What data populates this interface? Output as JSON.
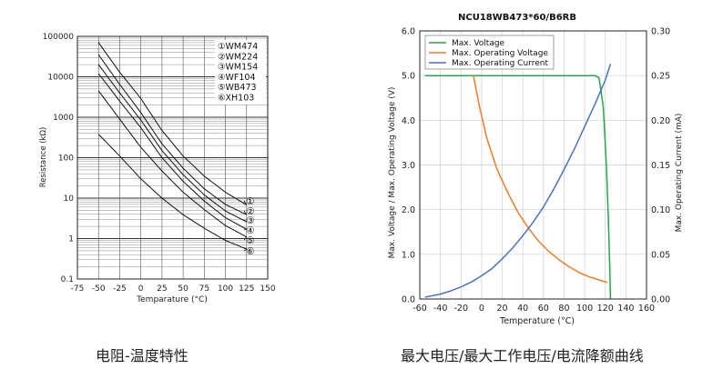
{
  "chart_data": [
    {
      "type": "line",
      "title": "",
      "xlabel": "Temparature (°C)",
      "ylabel": "Resistance (kΩ)",
      "xlim": [
        -75,
        150
      ],
      "ylim": [
        0.1,
        100000
      ],
      "yscale": "log",
      "x_ticks": [
        "-75",
        "-50",
        "-25",
        "0",
        "25",
        "50",
        "75",
        "100",
        "125",
        "150"
      ],
      "y_ticks": [
        "100000",
        "10000",
        "1000",
        "100",
        "10",
        "1",
        "0.1"
      ],
      "grid": true,
      "legend": "top-right",
      "legend_entries": [
        "①WM474",
        "②WM224",
        "③WM154",
        "④WF104",
        "⑤WB473",
        "⑥XH103"
      ],
      "series": [
        {
          "name": "①WM474",
          "marker": "①",
          "x": [
            -50,
            -25,
            0,
            25,
            50,
            75,
            100,
            125
          ],
          "y": [
            70000,
            13000,
            2900,
            470,
            110,
            35,
            14,
            6.8
          ]
        },
        {
          "name": "②WM224",
          "marker": "②",
          "x": [
            -50,
            -25,
            0,
            25,
            50,
            75,
            100,
            125
          ],
          "y": [
            35000,
            6500,
            1300,
            220,
            55,
            17,
            7,
            3.9
          ]
        },
        {
          "name": "③WM154",
          "marker": "③",
          "x": [
            -50,
            -25,
            0,
            25,
            50,
            75,
            100,
            125
          ],
          "y": [
            20000,
            4000,
            850,
            150,
            38,
            12,
            4.8,
            2.6
          ]
        },
        {
          "name": "④WF104",
          "marker": "④",
          "x": [
            -50,
            -25,
            0,
            25,
            50,
            75,
            100,
            125
          ],
          "y": [
            12000,
            2500,
            550,
            100,
            26,
            8.5,
            3.3,
            1.7
          ]
        },
        {
          "name": "⑤WB473",
          "marker": "⑤",
          "x": [
            -50,
            -25,
            0,
            25,
            50,
            75,
            100,
            125
          ],
          "y": [
            4500,
            900,
            180,
            47,
            14,
            5.2,
            2.1,
            1.1
          ]
        },
        {
          "name": "⑥XH103",
          "marker": "⑥",
          "x": [
            -50,
            -25,
            0,
            25,
            50,
            75,
            100,
            125
          ],
          "y": [
            380,
            110,
            30,
            10,
            3.9,
            1.8,
            0.9,
            0.55
          ]
        }
      ]
    },
    {
      "type": "line",
      "title": "NCU18WB473*60/B6RB",
      "xlabel": "Temperature (°C)",
      "ylabel": "Max. Voltage / Max. Operating Voltage (V)",
      "y2label": "Max. Operating Current (mA)",
      "xlim": [
        -60,
        160
      ],
      "ylim": [
        0,
        6
      ],
      "y2lim": [
        0,
        0.3
      ],
      "x_ticks": [
        "-60",
        "-40",
        "-20",
        "0",
        "20",
        "40",
        "60",
        "80",
        "100",
        "120",
        "140",
        "160"
      ],
      "y_ticks": [
        "0.0",
        "1.0",
        "2.0",
        "3.0",
        "4.0",
        "5.0",
        "6.0"
      ],
      "y2_ticks": [
        "0.00",
        "0.05",
        "0.10",
        "0.15",
        "0.20",
        "0.25",
        "0.30"
      ],
      "grid": true,
      "legend": "top-left",
      "colors": {
        "Max. Voltage": "#21a84a",
        "Max. Operating Voltage": "#ee7d2c",
        "Max. Operating Current": "#4a72c6"
      },
      "series": [
        {
          "name": "Max. Voltage",
          "axis": "left",
          "x": [
            -55,
            110,
            114,
            118,
            121,
            123,
            124.5,
            125
          ],
          "y": [
            5.0,
            5.0,
            4.95,
            4.3,
            3.0,
            1.8,
            0.6,
            0.0
          ]
        },
        {
          "name": "Max. Operating Voltage",
          "axis": "left",
          "x": [
            -8,
            -2,
            5,
            15,
            25,
            35,
            45,
            55,
            65,
            75,
            85,
            95,
            105,
            115,
            122
          ],
          "y": [
            5.0,
            4.3,
            3.6,
            2.9,
            2.4,
            1.95,
            1.6,
            1.3,
            1.07,
            0.88,
            0.72,
            0.59,
            0.49,
            0.42,
            0.37
          ]
        },
        {
          "name": "Max. Operating Current",
          "axis": "right",
          "x": [
            -55,
            -40,
            -30,
            -20,
            -10,
            0,
            10,
            20,
            30,
            40,
            50,
            60,
            70,
            80,
            90,
            100,
            110,
            120,
            125
          ],
          "y": [
            0.002,
            0.0055,
            0.009,
            0.0135,
            0.019,
            0.026,
            0.034,
            0.045,
            0.057,
            0.071,
            0.086,
            0.103,
            0.123,
            0.145,
            0.168,
            0.193,
            0.218,
            0.245,
            0.263
          ]
        }
      ]
    }
  ],
  "captions": {
    "left": "电阻-温度特性",
    "right": "最大电压/最大工作电压/电流降额曲线"
  }
}
